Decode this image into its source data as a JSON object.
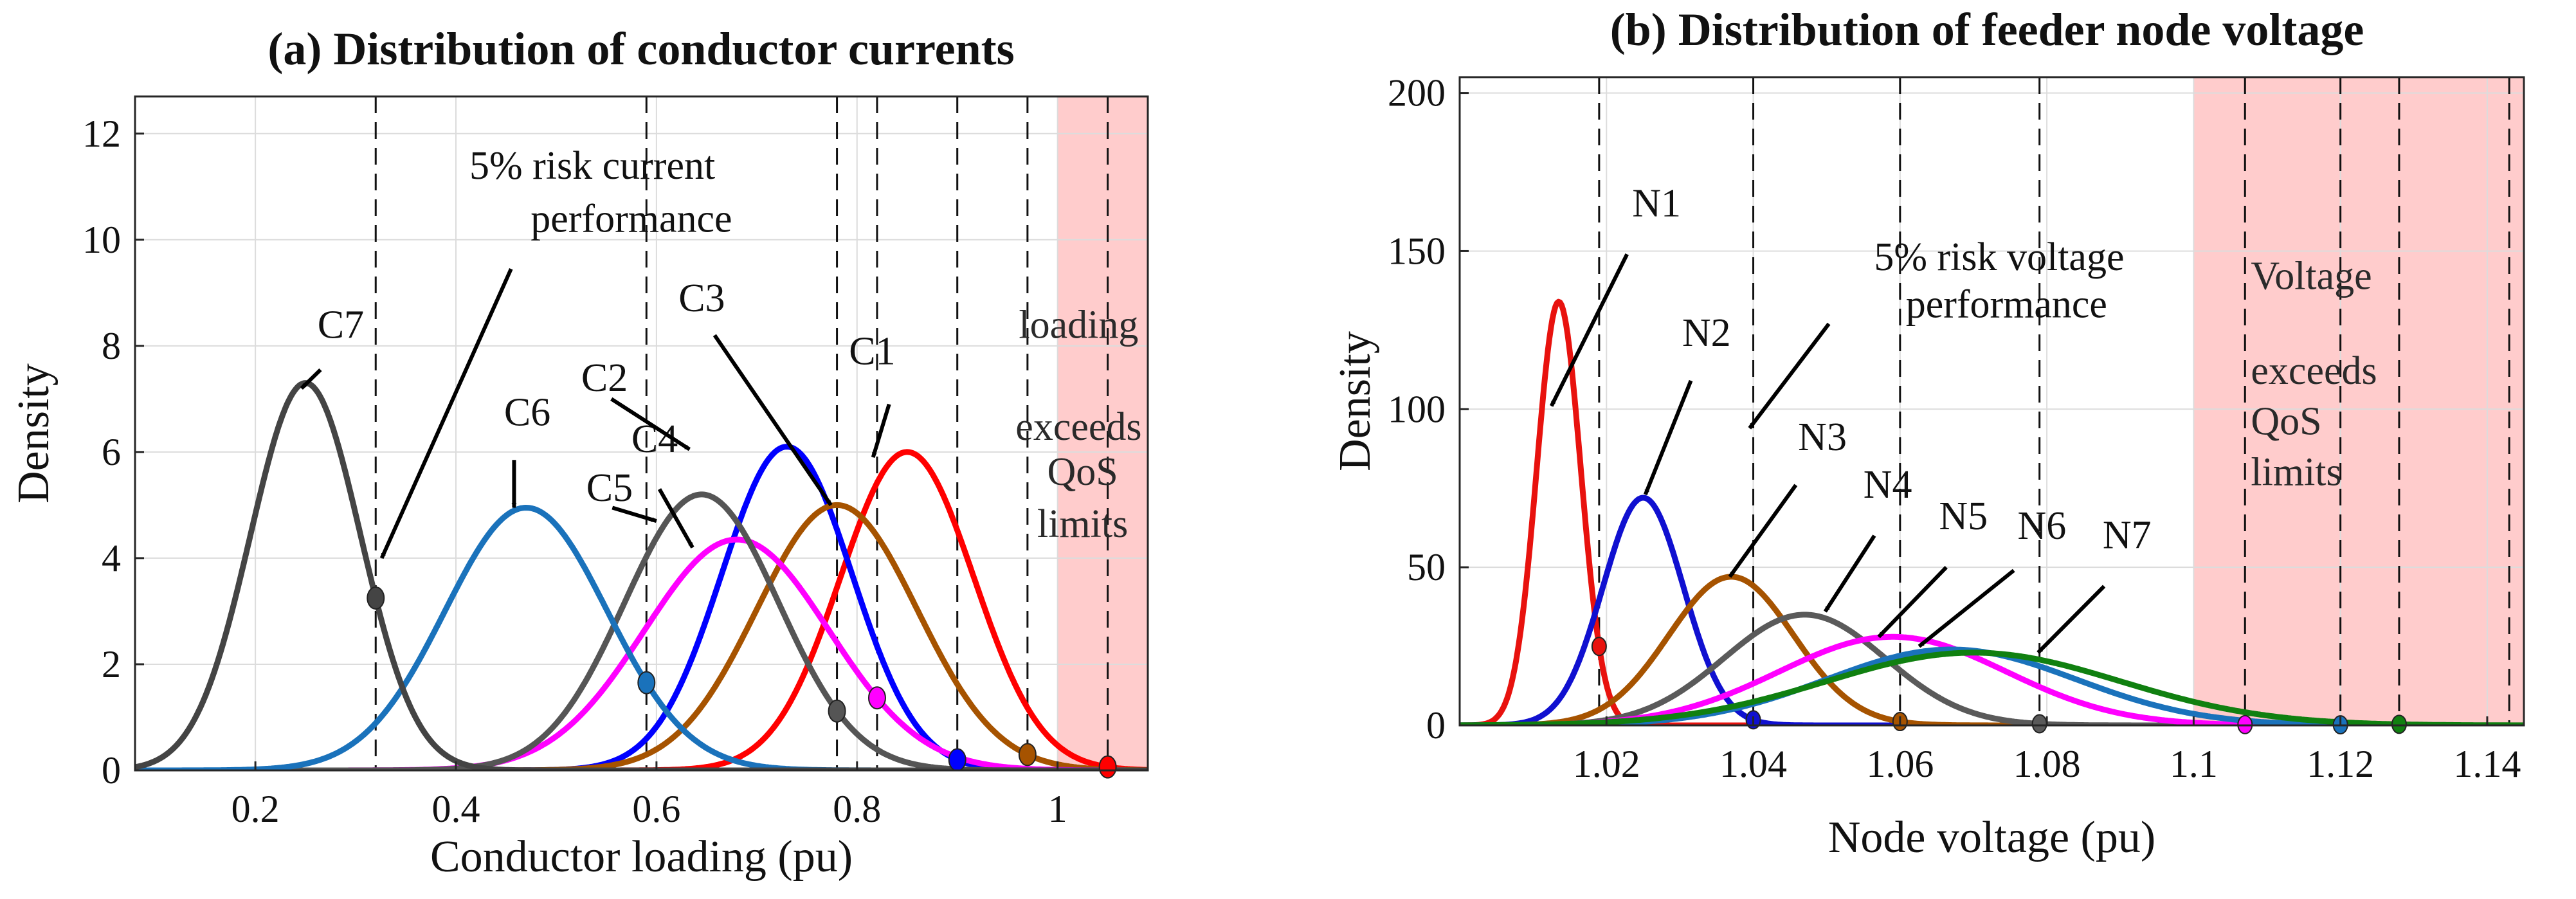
{
  "chart_data": [
    {
      "type": "line",
      "title": "(a) Distribution of conductor currents",
      "xlabel": "Conductor loading (pu)",
      "ylabel": "Density",
      "xlim": [
        0.08,
        1.09
      ],
      "ylim": [
        0,
        12.7
      ],
      "x_ticks": [
        0.2,
        0.4,
        0.6,
        0.8,
        1
      ],
      "x_tick_labels": [
        "0.2",
        "0.4",
        "0.6",
        "0.8",
        "1"
      ],
      "y_ticks": [
        0,
        2,
        4,
        6,
        8,
        10,
        12
      ],
      "y_tick_labels": [
        "0",
        "2",
        "4",
        "6",
        "8",
        "10",
        "12"
      ],
      "grid": true,
      "series": [
        {
          "name": "C1",
          "color": "#ff0000",
          "mean": 0.85,
          "std": 0.0665,
          "peak": 6.0,
          "risk_x": 1.05
        },
        {
          "name": "C2",
          "color": "#0000ff",
          "mean": 0.73,
          "std": 0.065,
          "peak": 6.1,
          "risk_x": 0.9
        },
        {
          "name": "C3",
          "color": "#a65300",
          "mean": 0.78,
          "std": 0.08,
          "peak": 5.0,
          "risk_x": 0.97
        },
        {
          "name": "C4",
          "color": "#ff00ff",
          "mean": 0.68,
          "std": 0.092,
          "peak": 4.35,
          "risk_x": 0.82
        },
        {
          "name": "C5",
          "color": "#555555",
          "mean": 0.645,
          "std": 0.077,
          "peak": 5.2,
          "risk_x": 0.78
        },
        {
          "name": "C6",
          "color": "#1a72bb",
          "mean": 0.47,
          "std": 0.081,
          "peak": 4.95,
          "risk_x": 0.59
        },
        {
          "name": "C7",
          "color": "#444444",
          "mean": 0.25,
          "std": 0.055,
          "peak": 7.3,
          "risk_x": 0.32
        }
      ],
      "vlines_x": [
        0.32,
        0.59,
        0.78,
        0.82,
        0.9,
        0.97,
        1.05
      ],
      "shaded_region": {
        "from": 1.0,
        "to": 1.09,
        "color": "#ffcccc",
        "text": [
          "loading",
          "exceeds",
          "QoS",
          "limits"
        ]
      },
      "annotations": [
        {
          "id": "C7",
          "text": "C7"
        },
        {
          "id": "C6",
          "text": "C6"
        },
        {
          "id": "C5",
          "text": "C5"
        },
        {
          "id": "C4",
          "text": "C4"
        },
        {
          "id": "C2",
          "text": "C2"
        },
        {
          "id": "C3",
          "text": "C3"
        },
        {
          "id": "C1",
          "text": "C1"
        },
        {
          "id": "risk",
          "text": [
            "5% risk current",
            "performance"
          ]
        }
      ]
    },
    {
      "type": "line",
      "title": "(b) Distribution of feeder node voltage",
      "xlabel": "Node voltage (pu)",
      "ylabel": "Density",
      "xlim": [
        1.0,
        1.145
      ],
      "ylim": [
        0,
        205
      ],
      "x_ticks": [
        1.02,
        1.04,
        1.06,
        1.08,
        1.1,
        1.12,
        1.14
      ],
      "x_tick_labels": [
        "1.02",
        "1.04",
        "1.06",
        "1.08",
        "1.1",
        "1.12",
        "1.14"
      ],
      "y_ticks": [
        0,
        50,
        100,
        150,
        200
      ],
      "y_tick_labels": [
        "0",
        "50",
        "100",
        "150",
        "200"
      ],
      "grid": true,
      "series": [
        {
          "name": "N1",
          "color": "#e8120e",
          "mean": 1.0135,
          "std": 0.003,
          "peak": 134,
          "risk_x": 1.019
        },
        {
          "name": "N2",
          "color": "#1010d0",
          "mean": 1.025,
          "std": 0.0055,
          "peak": 72,
          "risk_x": 1.04
        },
        {
          "name": "N3",
          "color": "#a65300",
          "mean": 1.037,
          "std": 0.0085,
          "peak": 47,
          "risk_x": 1.06
        },
        {
          "name": "N4",
          "color": "#5a5a5a",
          "mean": 1.047,
          "std": 0.011,
          "peak": 35,
          "risk_x": 1.079
        },
        {
          "name": "N5",
          "color": "#ff00ff",
          "mean": 1.059,
          "std": 0.0155,
          "peak": 28,
          "risk_x": 1.107
        },
        {
          "name": "N6",
          "color": "#1a72bb",
          "mean": 1.067,
          "std": 0.017,
          "peak": 24,
          "risk_x": 1.12
        },
        {
          "name": "N7",
          "color": "#108010",
          "mean": 1.07,
          "std": 0.02,
          "peak": 23,
          "risk_x": 1.128
        }
      ],
      "vlines_x": [
        1.019,
        1.04,
        1.06,
        1.079,
        1.107,
        1.12,
        1.128,
        1.143
      ],
      "shaded_region": {
        "from": 1.1,
        "to": 1.145,
        "color": "#ffcccc",
        "text": [
          "Voltage",
          "exceeds",
          "QoS",
          "limits"
        ]
      },
      "annotations": [
        {
          "id": "N1",
          "text": "N1"
        },
        {
          "id": "N2",
          "text": "N2"
        },
        {
          "id": "N3",
          "text": "N3"
        },
        {
          "id": "N4",
          "text": "N4"
        },
        {
          "id": "N5",
          "text": "N5"
        },
        {
          "id": "N6",
          "text": "N6"
        },
        {
          "id": "N7",
          "text": "N7"
        },
        {
          "id": "risk",
          "text": [
            "5% risk voltage",
            "performance"
          ]
        }
      ]
    }
  ]
}
